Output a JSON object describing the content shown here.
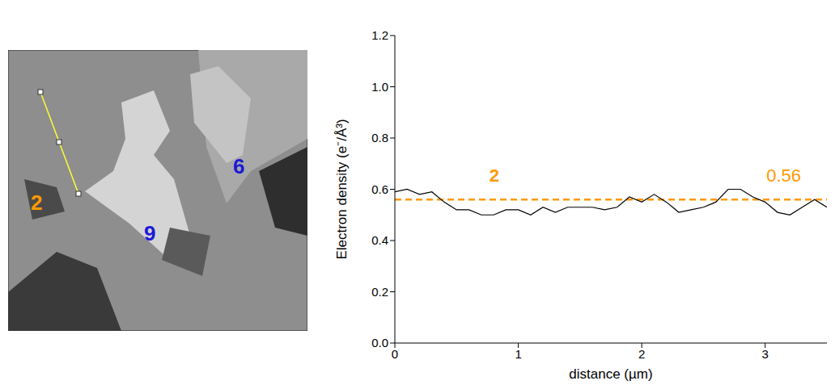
{
  "chart_data": {
    "type": "line",
    "x": [
      0,
      0.1,
      0.2,
      0.3,
      0.4,
      0.5,
      0.6,
      0.7,
      0.8,
      0.9,
      1.0,
      1.1,
      1.2,
      1.3,
      1.4,
      1.5,
      1.6,
      1.7,
      1.8,
      1.9,
      2.0,
      2.1,
      2.2,
      2.3,
      2.4,
      2.5,
      2.6,
      2.7,
      2.8,
      2.9,
      3.0,
      3.1,
      3.2,
      3.3,
      3.4,
      3.5
    ],
    "values": [
      0.59,
      0.6,
      0.58,
      0.59,
      0.55,
      0.52,
      0.52,
      0.5,
      0.5,
      0.52,
      0.52,
      0.5,
      0.53,
      0.51,
      0.53,
      0.53,
      0.53,
      0.52,
      0.53,
      0.57,
      0.55,
      0.58,
      0.55,
      0.51,
      0.52,
      0.53,
      0.55,
      0.6,
      0.6,
      0.57,
      0.55,
      0.51,
      0.5,
      0.53,
      0.56,
      0.53
    ],
    "color": "#000000",
    "xlim": [
      0,
      3.5
    ],
    "ylim": [
      0,
      1.2
    ],
    "xticks": [
      0,
      1,
      2,
      3
    ],
    "yticks": [
      {
        "value": 0,
        "label": "0.0"
      },
      {
        "value": 0.2,
        "label": "0.2"
      },
      {
        "value": 0.4,
        "label": "0.4"
      },
      {
        "value": 0.6,
        "label": "0.6"
      },
      {
        "value": 0.8,
        "label": "0.8"
      },
      {
        "value": 1.0,
        "label": "1.0"
      },
      {
        "value": 1.2,
        "label": "1.2"
      }
    ],
    "x_label": "distance (µm)",
    "y_label": "Electron density (e⁻/Å³)",
    "reference_line": {
      "value": 0.56,
      "label": "0.56",
      "name": "2",
      "color": "#ff9900",
      "line_style": "dashed"
    }
  },
  "image_panel": {
    "labels": [
      {
        "text": "2",
        "color": "#ff9900"
      },
      {
        "text": "9",
        "color": "#1a1ad6"
      },
      {
        "text": "6",
        "color": "#1a1ad6"
      }
    ],
    "line_color": "#ffff33"
  }
}
